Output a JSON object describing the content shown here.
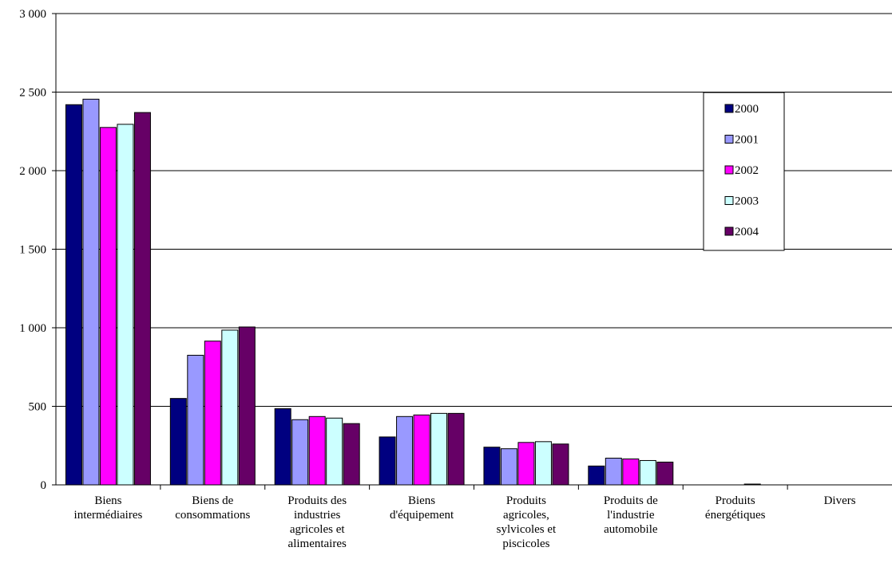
{
  "chart_data": {
    "type": "bar",
    "title": "",
    "xlabel": "",
    "ylabel": "",
    "ylim": [
      0,
      3000
    ],
    "y_ticks": [
      0,
      500,
      1000,
      1500,
      2000,
      2500,
      3000
    ],
    "y_tick_labels": [
      "0",
      "500",
      "1 000",
      "1 500",
      "2 000",
      "2 500",
      "3 000"
    ],
    "grid": true,
    "legend_position": "right",
    "categories": [
      [
        "Biens",
        "intermédiaires"
      ],
      [
        "Biens de",
        "consommations"
      ],
      [
        "Produits des",
        "industries",
        "agricoles et",
        "alimentaires"
      ],
      [
        "Biens",
        "d'équipement"
      ],
      [
        "Produits",
        "agricoles,",
        "sylvicoles et",
        "piscicoles"
      ],
      [
        "Produits de",
        "l'industrie",
        "automobile"
      ],
      [
        "Produits",
        "énergétiques"
      ],
      [
        "Divers"
      ]
    ],
    "series": [
      {
        "name": "2000",
        "color": "#000080",
        "values": [
          2420,
          550,
          485,
          305,
          240,
          120,
          0,
          0
        ]
      },
      {
        "name": "2001",
        "color": "#9999FF",
        "values": [
          2455,
          825,
          415,
          435,
          230,
          170,
          0,
          0
        ]
      },
      {
        "name": "2002",
        "color": "#FF00FF",
        "values": [
          2275,
          915,
          435,
          445,
          270,
          165,
          0,
          0
        ]
      },
      {
        "name": "2003",
        "color": "#CCFFFF",
        "values": [
          2295,
          985,
          425,
          455,
          275,
          155,
          5,
          0
        ]
      },
      {
        "name": "2004",
        "color": "#660066",
        "values": [
          2370,
          1005,
          390,
          455,
          260,
          145,
          0,
          0
        ]
      }
    ]
  }
}
